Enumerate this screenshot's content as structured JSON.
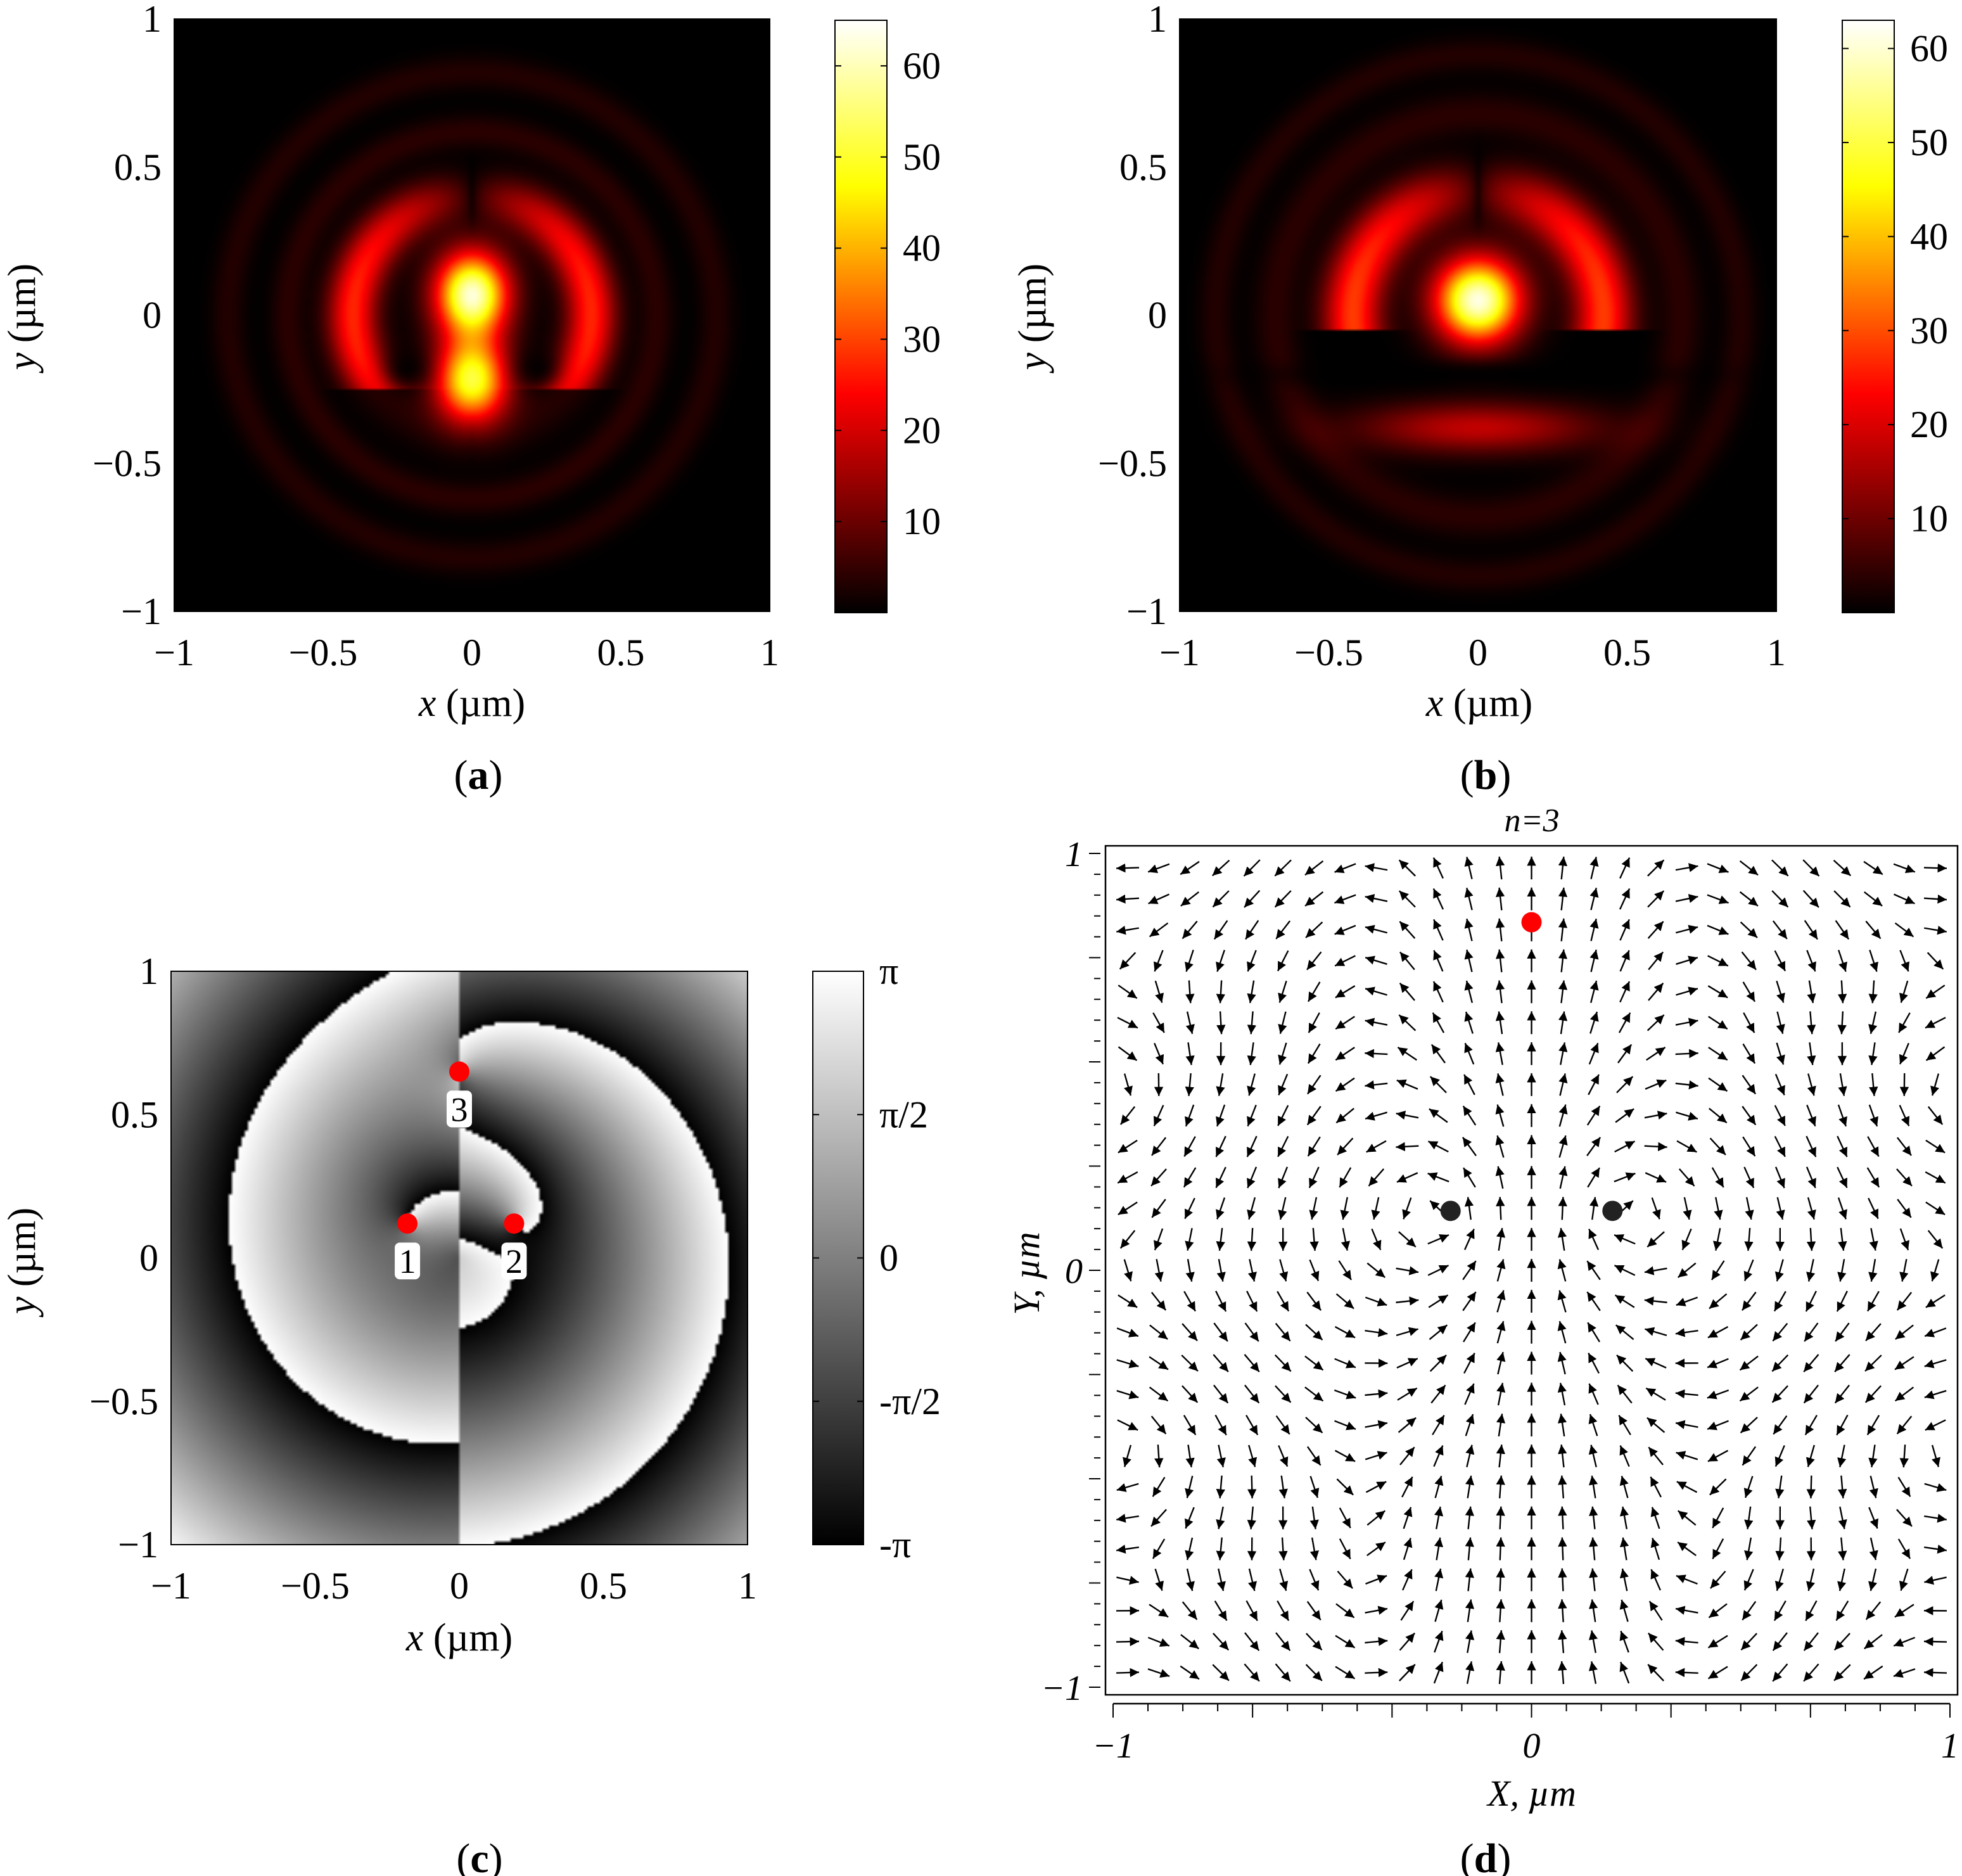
{
  "panels": {
    "a": {
      "label": "a",
      "chart_data": {
        "type": "heatmap",
        "xlabel_var": "x",
        "xlabel_unit": " (µm)",
        "ylabel_var": "y",
        "ylabel_unit": " (µm)",
        "xlim": [
          -1,
          1
        ],
        "ylim": [
          -1,
          1
        ],
        "x_ticks": [
          "−1",
          "−0.5",
          "0",
          "0.5",
          "1"
        ],
        "y_ticks": [
          "−1",
          "−0.5",
          "0",
          "0.5",
          "1"
        ],
        "colorbar": {
          "range": [
            0,
            65
          ],
          "ticks": [
            "10",
            "20",
            "30",
            "40",
            "50",
            "60"
          ],
          "colormap": "hot"
        },
        "features": [
          {
            "kind": "peak",
            "x": 0,
            "y": 0.07,
            "value": 65
          },
          {
            "kind": "peak",
            "x": 0,
            "y": -0.22,
            "value": 50
          },
          {
            "kind": "arc",
            "x": -0.36,
            "y": 0.15,
            "value": 30
          },
          {
            "kind": "arc",
            "x": 0.36,
            "y": 0.15,
            "value": 30
          },
          {
            "kind": "ring",
            "radius": 0.75,
            "value": 6
          }
        ]
      }
    },
    "b": {
      "label": "b",
      "chart_data": {
        "type": "heatmap",
        "xlabel_var": "x",
        "xlabel_unit": " (µm)",
        "ylabel_var": "y",
        "ylabel_unit": " (µm)",
        "xlim": [
          -1,
          1
        ],
        "ylim": [
          -1,
          1
        ],
        "x_ticks": [
          "−1",
          "−0.5",
          "0",
          "0.5",
          "1"
        ],
        "y_ticks": [
          "−1",
          "−0.5",
          "0",
          "0.5",
          "1"
        ],
        "colorbar": {
          "range": [
            0,
            63
          ],
          "ticks": [
            "10",
            "20",
            "30",
            "40",
            "50",
            "60"
          ],
          "colormap": "hot"
        },
        "features": [
          {
            "kind": "peak",
            "x": 0,
            "y": 0.05,
            "value": 63
          },
          {
            "kind": "arc",
            "x": -0.38,
            "y": 0.17,
            "value": 30
          },
          {
            "kind": "arc",
            "x": 0.38,
            "y": 0.17,
            "value": 30
          },
          {
            "kind": "arc",
            "x": 0,
            "y": -0.35,
            "value": 18
          },
          {
            "kind": "ring",
            "radius": 0.8,
            "value": 5
          }
        ]
      }
    },
    "c": {
      "label": "c",
      "chart_data": {
        "type": "heatmap",
        "xlabel_var": "x",
        "xlabel_unit": " (µm)",
        "ylabel_var": "y",
        "ylabel_unit": " (µm)",
        "xlim": [
          -1,
          1
        ],
        "ylim": [
          -1,
          1
        ],
        "x_ticks": [
          "−1",
          "−0.5",
          "0",
          "0.5",
          "1"
        ],
        "y_ticks": [
          "−1",
          "−0.5",
          "0",
          "0.5",
          "1"
        ],
        "colorbar": {
          "range": [
            "-π",
            "π"
          ],
          "ticks": [
            "-π",
            "-π/2",
            "0",
            "π/2",
            "π"
          ],
          "colormap": "gray"
        },
        "singular_points": [
          {
            "label": "1",
            "x": -0.18,
            "y": 0.12,
            "color": "#ff0000"
          },
          {
            "label": "2",
            "x": 0.19,
            "y": 0.12,
            "color": "#ff0000"
          },
          {
            "label": "3",
            "x": 0.0,
            "y": 0.65,
            "color": "#ff0000"
          }
        ]
      }
    },
    "d": {
      "label": "d",
      "chart_data": {
        "type": "vector-field",
        "title": "n=3",
        "xlabel": "X, µm",
        "ylabel": "Y, µm",
        "xlim": [
          -1,
          1
        ],
        "ylim": [
          -1,
          1
        ],
        "x_ticks": [
          "−1",
          "0",
          "1"
        ],
        "y_ticks": [
          "−1",
          "0",
          "1"
        ],
        "grid_steps": 27,
        "points": [
          {
            "x": 0.0,
            "y": 0.82,
            "color": "#ff0000"
          },
          {
            "x": -0.19,
            "y": 0.14,
            "color": "#222222"
          },
          {
            "x": 0.19,
            "y": 0.14,
            "color": "#222222"
          }
        ]
      }
    }
  }
}
